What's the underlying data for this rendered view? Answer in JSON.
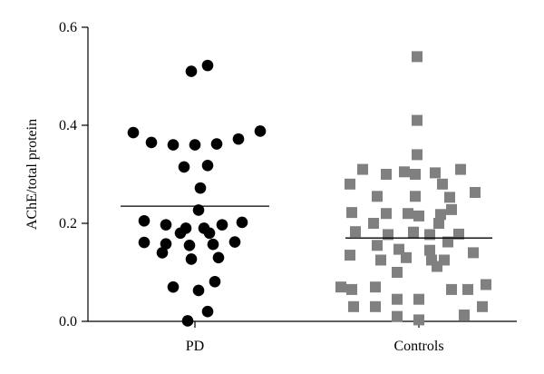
{
  "chart_data": {
    "type": "scatter",
    "title": "",
    "xlabel": "",
    "ylabel": "AChE/total protein",
    "ylim": [
      0,
      0.6
    ],
    "yticks": [
      "0.0",
      "0.2",
      "0.4",
      "0.6"
    ],
    "categories": [
      "PD",
      "Controls"
    ],
    "grid": false,
    "legend": "none",
    "series": [
      {
        "category": "PD",
        "marker": "circle",
        "color": "#000000",
        "mean": 0.235,
        "points": [
          {
            "x": -0.34,
            "y": 0.385
          },
          {
            "x": -0.24,
            "y": 0.365
          },
          {
            "x": -0.12,
            "y": 0.36
          },
          {
            "x": 0.0,
            "y": 0.36
          },
          {
            "x": 0.12,
            "y": 0.362
          },
          {
            "x": 0.24,
            "y": 0.372
          },
          {
            "x": 0.36,
            "y": 0.388
          },
          {
            "x": -0.02,
            "y": 0.51
          },
          {
            "x": 0.07,
            "y": 0.522
          },
          {
            "x": -0.06,
            "y": 0.315
          },
          {
            "x": 0.07,
            "y": 0.318
          },
          {
            "x": 0.03,
            "y": 0.272
          },
          {
            "x": 0.02,
            "y": 0.227
          },
          {
            "x": -0.28,
            "y": 0.205
          },
          {
            "x": -0.16,
            "y": 0.197
          },
          {
            "x": -0.05,
            "y": 0.19
          },
          {
            "x": 0.05,
            "y": 0.19
          },
          {
            "x": 0.15,
            "y": 0.197
          },
          {
            "x": 0.26,
            "y": 0.202
          },
          {
            "x": -0.08,
            "y": 0.18
          },
          {
            "x": 0.08,
            "y": 0.18
          },
          {
            "x": -0.28,
            "y": 0.161
          },
          {
            "x": -0.16,
            "y": 0.158
          },
          {
            "x": -0.03,
            "y": 0.155
          },
          {
            "x": 0.1,
            "y": 0.157
          },
          {
            "x": 0.22,
            "y": 0.162
          },
          {
            "x": -0.18,
            "y": 0.14
          },
          {
            "x": -0.02,
            "y": 0.127
          },
          {
            "x": 0.13,
            "y": 0.13
          },
          {
            "x": -0.12,
            "y": 0.07
          },
          {
            "x": 0.02,
            "y": 0.063
          },
          {
            "x": 0.11,
            "y": 0.081
          },
          {
            "x": 0.07,
            "y": 0.02
          },
          {
            "x": -0.04,
            "y": 0.001
          }
        ]
      },
      {
        "category": "Controls",
        "marker": "square",
        "color": "#808080",
        "mean": 0.17,
        "points": [
          {
            "x": -0.01,
            "y": 0.54
          },
          {
            "x": -0.01,
            "y": 0.41
          },
          {
            "x": -0.01,
            "y": 0.34
          },
          {
            "x": -0.31,
            "y": 0.31
          },
          {
            "x": -0.18,
            "y": 0.3
          },
          {
            "x": -0.08,
            "y": 0.305
          },
          {
            "x": -0.02,
            "y": 0.3
          },
          {
            "x": 0.09,
            "y": 0.303
          },
          {
            "x": 0.23,
            "y": 0.31
          },
          {
            "x": -0.38,
            "y": 0.28
          },
          {
            "x": 0.13,
            "y": 0.28
          },
          {
            "x": -0.23,
            "y": 0.255
          },
          {
            "x": -0.02,
            "y": 0.255
          },
          {
            "x": 0.17,
            "y": 0.253
          },
          {
            "x": 0.31,
            "y": 0.263
          },
          {
            "x": -0.37,
            "y": 0.222
          },
          {
            "x": -0.18,
            "y": 0.22
          },
          {
            "x": -0.06,
            "y": 0.22
          },
          {
            "x": 0.0,
            "y": 0.215
          },
          {
            "x": 0.12,
            "y": 0.218
          },
          {
            "x": 0.18,
            "y": 0.228
          },
          {
            "x": -0.25,
            "y": 0.2
          },
          {
            "x": 0.11,
            "y": 0.2
          },
          {
            "x": -0.35,
            "y": 0.183
          },
          {
            "x": -0.17,
            "y": 0.177
          },
          {
            "x": -0.03,
            "y": 0.182
          },
          {
            "x": 0.06,
            "y": 0.177
          },
          {
            "x": 0.16,
            "y": 0.162
          },
          {
            "x": 0.22,
            "y": 0.178
          },
          {
            "x": -0.23,
            "y": 0.155
          },
          {
            "x": -0.11,
            "y": 0.147
          },
          {
            "x": 0.06,
            "y": 0.145
          },
          {
            "x": -0.38,
            "y": 0.135
          },
          {
            "x": -0.21,
            "y": 0.125
          },
          {
            "x": -0.07,
            "y": 0.13
          },
          {
            "x": 0.07,
            "y": 0.125
          },
          {
            "x": 0.14,
            "y": 0.125
          },
          {
            "x": 0.3,
            "y": 0.14
          },
          {
            "x": -0.12,
            "y": 0.1
          },
          {
            "x": 0.1,
            "y": 0.112
          },
          {
            "x": -0.43,
            "y": 0.07
          },
          {
            "x": -0.37,
            "y": 0.065
          },
          {
            "x": -0.24,
            "y": 0.07
          },
          {
            "x": -0.12,
            "y": 0.045
          },
          {
            "x": 0.0,
            "y": 0.045
          },
          {
            "x": 0.18,
            "y": 0.065
          },
          {
            "x": 0.27,
            "y": 0.065
          },
          {
            "x": 0.37,
            "y": 0.075
          },
          {
            "x": -0.36,
            "y": 0.03
          },
          {
            "x": -0.24,
            "y": 0.03
          },
          {
            "x": 0.35,
            "y": 0.03
          },
          {
            "x": -0.12,
            "y": 0.01
          },
          {
            "x": 0.0,
            "y": 0.003
          },
          {
            "x": 0.25,
            "y": 0.013
          }
        ]
      }
    ]
  }
}
